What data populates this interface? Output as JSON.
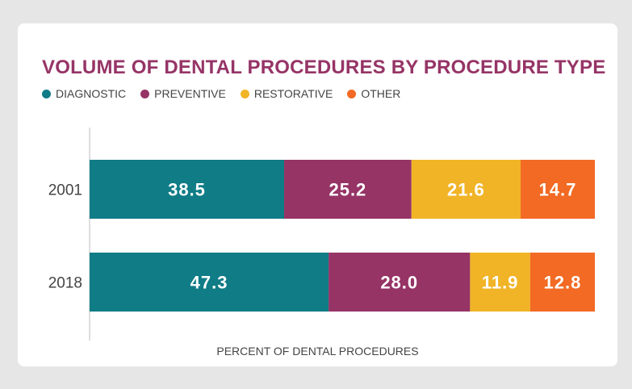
{
  "chart_data": {
    "type": "bar",
    "orientation": "horizontal",
    "stacked": true,
    "title": "VOLUME OF DENTAL PROCEDURES BY PROCEDURE TYPE",
    "xlabel": "PERCENT OF DENTAL PROCEDURES",
    "ylabel": "",
    "categories": [
      "2001",
      "2018"
    ],
    "series": [
      {
        "name": "DIAGNOSTIC",
        "color": "#0f7c86",
        "values": [
          38.5,
          47.3
        ]
      },
      {
        "name": "PREVENTIVE",
        "color": "#963466",
        "values": [
          25.2,
          28.0
        ]
      },
      {
        "name": "RESTORATIVE",
        "color": "#f1b427",
        "values": [
          21.6,
          11.9
        ]
      },
      {
        "name": "OTHER",
        "color": "#f26a24",
        "values": [
          14.7,
          12.8
        ]
      }
    ],
    "xlim": [
      0,
      100
    ],
    "grid": false,
    "legend_position": "top-left",
    "data_labels": true
  },
  "colors": {
    "title": "#963466",
    "background": "#e6e6e6",
    "card": "#ffffff",
    "axis": "#bdbdbd"
  }
}
